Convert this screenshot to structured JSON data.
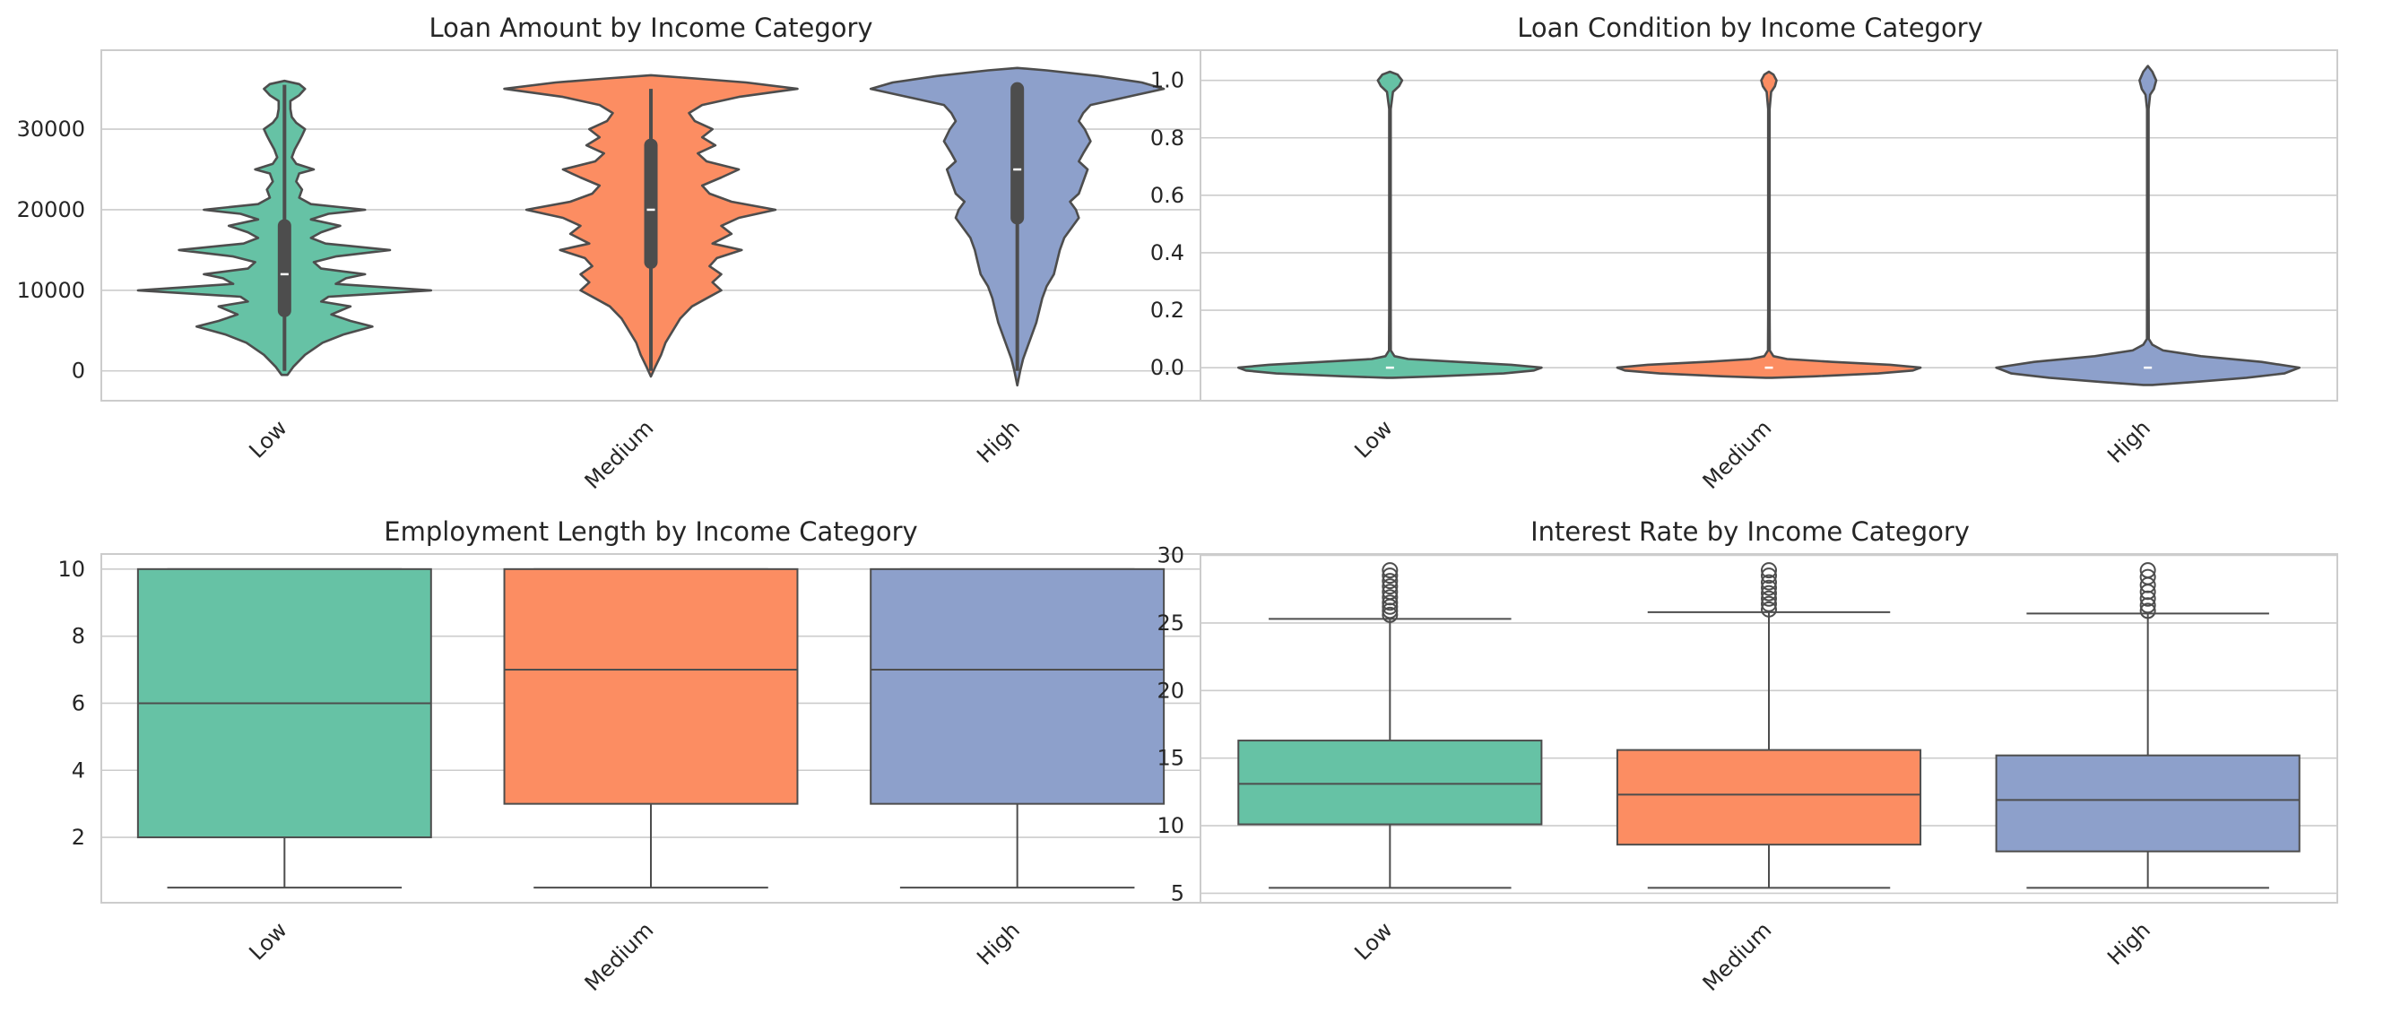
{
  "colors": {
    "Low": "#66c2a5",
    "Medium": "#fc8d62",
    "High": "#8da0cb",
    "edge": "#4d4d4d",
    "grid": "#cccccc",
    "frame": "#cccccc"
  },
  "chart_data": [
    {
      "type": "violin",
      "title": "Loan Amount by Income Category",
      "xlabel": "",
      "ylabel": "",
      "categories": [
        "Low",
        "Medium",
        "High"
      ],
      "ylim": [
        -3700,
        39800
      ],
      "yticks": [
        0,
        10000,
        20000,
        30000
      ],
      "ytick_labels": [
        "0",
        "10000",
        "20000",
        "30000"
      ],
      "grid": true,
      "series": [
        {
          "category": "Low",
          "min": 0,
          "q1": 7500,
          "median": 12000,
          "q3": 18000,
          "max": 35500,
          "density": [
            [
              -500,
              0.02
            ],
            [
              500,
              0.06
            ],
            [
              2000,
              0.14
            ],
            [
              3500,
              0.26
            ],
            [
              4500,
              0.4
            ],
            [
              5500,
              0.6
            ],
            [
              6200,
              0.45
            ],
            [
              7000,
              0.32
            ],
            [
              8000,
              0.45
            ],
            [
              8600,
              0.25
            ],
            [
              9200,
              0.3
            ],
            [
              10000,
              1.0
            ],
            [
              10800,
              0.35
            ],
            [
              11500,
              0.42
            ],
            [
              12000,
              0.55
            ],
            [
              12700,
              0.25
            ],
            [
              13500,
              0.2
            ],
            [
              14200,
              0.35
            ],
            [
              15000,
              0.72
            ],
            [
              15800,
              0.28
            ],
            [
              16500,
              0.18
            ],
            [
              17200,
              0.25
            ],
            [
              18000,
              0.38
            ],
            [
              18800,
              0.18
            ],
            [
              19500,
              0.3
            ],
            [
              20000,
              0.55
            ],
            [
              20700,
              0.18
            ],
            [
              21500,
              0.1
            ],
            [
              22500,
              0.12
            ],
            [
              23500,
              0.08
            ],
            [
              24500,
              0.1
            ],
            [
              25000,
              0.2
            ],
            [
              25700,
              0.08
            ],
            [
              26500,
              0.05
            ],
            [
              27500,
              0.07
            ],
            [
              28500,
              0.1
            ],
            [
              29200,
              0.12
            ],
            [
              30000,
              0.14
            ],
            [
              30800,
              0.08
            ],
            [
              31500,
              0.05
            ],
            [
              32500,
              0.04
            ],
            [
              33500,
              0.04
            ],
            [
              34200,
              0.1
            ],
            [
              35000,
              0.14
            ],
            [
              35600,
              0.1
            ],
            [
              36000,
              0.0
            ]
          ]
        },
        {
          "category": "Medium",
          "min": 0,
          "q1": 13500,
          "median": 20000,
          "q3": 28000,
          "max": 35000,
          "density": [
            [
              -700,
              0.0
            ],
            [
              500,
              0.03
            ],
            [
              2000,
              0.07
            ],
            [
              3500,
              0.1
            ],
            [
              5000,
              0.15
            ],
            [
              6500,
              0.2
            ],
            [
              8000,
              0.28
            ],
            [
              9000,
              0.38
            ],
            [
              10000,
              0.48
            ],
            [
              11000,
              0.42
            ],
            [
              12000,
              0.48
            ],
            [
              13000,
              0.4
            ],
            [
              14000,
              0.45
            ],
            [
              15000,
              0.62
            ],
            [
              15800,
              0.42
            ],
            [
              17000,
              0.55
            ],
            [
              18000,
              0.48
            ],
            [
              19000,
              0.6
            ],
            [
              20000,
              0.85
            ],
            [
              21000,
              0.55
            ],
            [
              22000,
              0.4
            ],
            [
              23000,
              0.35
            ],
            [
              24000,
              0.48
            ],
            [
              25000,
              0.6
            ],
            [
              26000,
              0.38
            ],
            [
              27000,
              0.32
            ],
            [
              28000,
              0.44
            ],
            [
              29000,
              0.35
            ],
            [
              30000,
              0.42
            ],
            [
              31000,
              0.3
            ],
            [
              32000,
              0.26
            ],
            [
              33000,
              0.35
            ],
            [
              34000,
              0.6
            ],
            [
              35000,
              1.0
            ],
            [
              35800,
              0.65
            ],
            [
              36300,
              0.3
            ],
            [
              36700,
              0.0
            ]
          ]
        },
        {
          "category": "High",
          "min": 0,
          "q1": 19000,
          "median": 25000,
          "q3": 35000,
          "max": 35000,
          "density": [
            [
              -1800,
              0.0
            ],
            [
              0,
              0.02
            ],
            [
              1500,
              0.04
            ],
            [
              3000,
              0.07
            ],
            [
              4500,
              0.1
            ],
            [
              6000,
              0.13
            ],
            [
              7500,
              0.15
            ],
            [
              9000,
              0.17
            ],
            [
              10500,
              0.2
            ],
            [
              12000,
              0.25
            ],
            [
              13500,
              0.27
            ],
            [
              15000,
              0.29
            ],
            [
              16500,
              0.32
            ],
            [
              18000,
              0.38
            ],
            [
              19000,
              0.42
            ],
            [
              20000,
              0.4
            ],
            [
              21000,
              0.36
            ],
            [
              22000,
              0.42
            ],
            [
              23500,
              0.45
            ],
            [
              25000,
              0.48
            ],
            [
              26000,
              0.42
            ],
            [
              27000,
              0.45
            ],
            [
              28500,
              0.5
            ],
            [
              30000,
              0.46
            ],
            [
              31000,
              0.42
            ],
            [
              32000,
              0.45
            ],
            [
              33000,
              0.5
            ],
            [
              34000,
              0.75
            ],
            [
              35000,
              1.0
            ],
            [
              35800,
              0.85
            ],
            [
              36600,
              0.55
            ],
            [
              37300,
              0.2
            ],
            [
              37600,
              0.0
            ]
          ]
        }
      ]
    },
    {
      "type": "violin",
      "title": "Loan Condition by Income Category",
      "xlabel": "",
      "ylabel": "",
      "categories": [
        "Low",
        "Medium",
        "High"
      ],
      "ylim": [
        -0.115,
        1.105
      ],
      "yticks": [
        0.0,
        0.2,
        0.4,
        0.6,
        0.8,
        1.0
      ],
      "ytick_labels": [
        "0.0",
        "0.2",
        "0.4",
        "0.6",
        "0.8",
        "1.0"
      ],
      "grid": true,
      "series": [
        {
          "category": "Low",
          "median": 0,
          "density": [
            [
              -0.035,
              0.02
            ],
            [
              -0.03,
              0.3
            ],
            [
              -0.02,
              0.75
            ],
            [
              -0.01,
              0.95
            ],
            [
              0.0,
              1.0
            ],
            [
              0.01,
              0.8
            ],
            [
              0.02,
              0.45
            ],
            [
              0.03,
              0.12
            ],
            [
              0.04,
              0.03
            ],
            [
              0.06,
              0.006
            ],
            [
              0.2,
              0.005
            ],
            [
              0.5,
              0.005
            ],
            [
              0.9,
              0.005
            ],
            [
              0.96,
              0.02
            ],
            [
              0.98,
              0.06
            ],
            [
              1.0,
              0.08
            ],
            [
              1.02,
              0.05
            ],
            [
              1.03,
              0.0
            ]
          ]
        },
        {
          "category": "Medium",
          "median": 0,
          "density": [
            [
              -0.035,
              0.02
            ],
            [
              -0.03,
              0.3
            ],
            [
              -0.02,
              0.72
            ],
            [
              -0.01,
              0.95
            ],
            [
              0.0,
              1.0
            ],
            [
              0.01,
              0.8
            ],
            [
              0.02,
              0.42
            ],
            [
              0.03,
              0.12
            ],
            [
              0.04,
              0.03
            ],
            [
              0.06,
              0.006
            ],
            [
              0.2,
              0.005
            ],
            [
              0.5,
              0.005
            ],
            [
              0.9,
              0.005
            ],
            [
              0.96,
              0.015
            ],
            [
              0.98,
              0.04
            ],
            [
              1.0,
              0.05
            ],
            [
              1.02,
              0.03
            ],
            [
              1.03,
              0.0
            ]
          ]
        },
        {
          "category": "High",
          "median": 0,
          "density": [
            [
              -0.06,
              0.03
            ],
            [
              -0.05,
              0.3
            ],
            [
              -0.035,
              0.65
            ],
            [
              -0.02,
              0.9
            ],
            [
              0.0,
              1.0
            ],
            [
              0.02,
              0.75
            ],
            [
              0.04,
              0.35
            ],
            [
              0.06,
              0.1
            ],
            [
              0.08,
              0.03
            ],
            [
              0.1,
              0.006
            ],
            [
              0.3,
              0.005
            ],
            [
              0.6,
              0.005
            ],
            [
              0.9,
              0.005
            ],
            [
              0.95,
              0.015
            ],
            [
              0.97,
              0.04
            ],
            [
              1.0,
              0.055
            ],
            [
              1.03,
              0.03
            ],
            [
              1.05,
              0.0
            ]
          ]
        }
      ]
    },
    {
      "type": "box",
      "title": "Employment Length by Income Category",
      "xlabel": "",
      "ylabel": "",
      "categories": [
        "Low",
        "Medium",
        "High"
      ],
      "ylim": [
        0.05,
        10.45
      ],
      "yticks": [
        2,
        4,
        6,
        8,
        10
      ],
      "ytick_labels": [
        "2",
        "4",
        "6",
        "8",
        "10"
      ],
      "grid": true,
      "series": [
        {
          "category": "Low",
          "whisker_low": 0.5,
          "q1": 2,
          "median": 6,
          "q3": 10,
          "whisker_high": 10,
          "outliers": []
        },
        {
          "category": "Medium",
          "whisker_low": 0.5,
          "q1": 3,
          "median": 7,
          "q3": 10,
          "whisker_high": 10,
          "outliers": []
        },
        {
          "category": "High",
          "whisker_low": 0.5,
          "q1": 3,
          "median": 7,
          "q3": 10,
          "whisker_high": 10,
          "outliers": []
        }
      ]
    },
    {
      "type": "box",
      "title": "Interest Rate by Income Category",
      "xlabel": "",
      "ylabel": "",
      "categories": [
        "Low",
        "Medium",
        "High"
      ],
      "ylim": [
        4.3,
        30.1
      ],
      "yticks": [
        5,
        10,
        15,
        20,
        25,
        30
      ],
      "ytick_labels": [
        "5",
        "10",
        "15",
        "20",
        "25",
        "30"
      ],
      "grid": true,
      "series": [
        {
          "category": "Low",
          "whisker_low": 5.4,
          "q1": 10.1,
          "median": 13.1,
          "q3": 16.3,
          "whisker_high": 25.3,
          "outliers": [
            25.6,
            25.9,
            26.2,
            26.5,
            26.9,
            27.3,
            27.7,
            28.1,
            28.5,
            28.9
          ]
        },
        {
          "category": "Medium",
          "whisker_low": 5.4,
          "q1": 8.6,
          "median": 12.3,
          "q3": 15.6,
          "whisker_high": 25.8,
          "outliers": [
            26.0,
            26.4,
            26.8,
            27.2,
            27.6,
            28.0,
            28.5,
            28.9
          ]
        },
        {
          "category": "High",
          "whisker_low": 5.4,
          "q1": 8.1,
          "median": 11.9,
          "q3": 15.2,
          "whisker_high": 25.7,
          "outliers": [
            25.9,
            26.3,
            26.8,
            27.3,
            27.8,
            28.4,
            28.9
          ]
        }
      ]
    }
  ]
}
